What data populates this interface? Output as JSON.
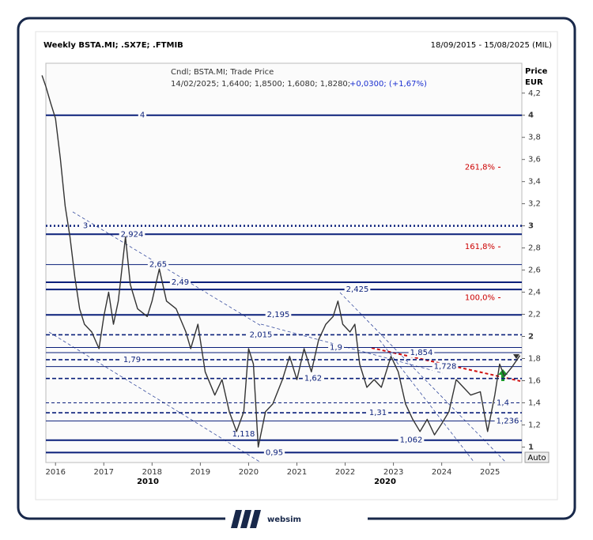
{
  "chart_data": {
    "type": "line",
    "title": "Weekly BSTA.MI; .SX7E; .FTMIB",
    "subtitle": "18/09/2015 - 15/08/2025 (MIL)",
    "info_line_1": "Cndl; BSTA.MI; Trade Price",
    "info_line_2": "14/02/2025; 1,6400; 1,8500; 1,6080; 1,8280;",
    "info_change": "+0,0300; (+1,67%)",
    "y_axis_label": "Price",
    "y_axis_unit": "EUR",
    "auto_button": "Auto",
    "x_secondary_labels": [
      "2010",
      "2020"
    ],
    "xlim": [
      2015.8,
      2025.66
    ],
    "ylim": [
      0.86,
      4.47
    ],
    "xticks": [
      2016,
      2017,
      2018,
      2019,
      2020,
      2021,
      2022,
      2023,
      2024,
      2025
    ],
    "yticks": [
      1,
      {
        "value": 1.2,
        "label": "1,2"
      },
      {
        "value": 1.4,
        "label": "1,4"
      },
      {
        "value": 1.6,
        "label": "1,6"
      },
      {
        "value": 1.8,
        "label": "1,8"
      },
      2,
      {
        "value": 2.2,
        "label": "2,2"
      },
      {
        "value": 2.4,
        "label": "2,4"
      },
      {
        "value": 2.6,
        "label": "2,6"
      },
      {
        "value": 2.8,
        "label": "2,8"
      },
      3,
      {
        "value": 3.2,
        "label": "3,2"
      },
      {
        "value": 3.4,
        "label": "3,4"
      },
      {
        "value": 3.6,
        "label": "3,6"
      },
      {
        "value": 3.8,
        "label": "3,8"
      },
      4,
      {
        "value": 4.2,
        "label": "4,2"
      }
    ],
    "series": [
      {
        "name": "BSTA.MI",
        "color": "#333333",
        "x": [
          2015.72,
          2015.8,
          2015.9,
          2016.0,
          2016.1,
          2016.2,
          2016.3,
          2016.4,
          2016.5,
          2016.6,
          2016.75,
          2016.9,
          2017.0,
          2017.1,
          2017.2,
          2017.3,
          2017.45,
          2017.55,
          2017.7,
          2017.9,
          2018.0,
          2018.15,
          2018.3,
          2018.5,
          2018.7,
          2018.8,
          2018.95,
          2019.1,
          2019.3,
          2019.45,
          2019.6,
          2019.75,
          2019.9,
          2020.0,
          2020.1,
          2020.2,
          2020.35,
          2020.5,
          2020.7,
          2020.85,
          2021.0,
          2021.15,
          2021.3,
          2021.45,
          2021.6,
          2021.75,
          2021.85,
          2021.95,
          2022.1,
          2022.2,
          2022.3,
          2022.45,
          2022.6,
          2022.75,
          2022.95,
          2023.1,
          2023.25,
          2023.4,
          2023.55,
          2023.7,
          2023.85,
          2024.0,
          2024.15,
          2024.3,
          2024.45,
          2024.6,
          2024.8,
          2024.95,
          2025.1,
          2025.2,
          2025.3,
          2025.45,
          2025.62
        ],
        "values": [
          4.36,
          4.26,
          4.11,
          3.97,
          3.61,
          3.18,
          2.9,
          2.54,
          2.25,
          2.11,
          2.04,
          1.89,
          2.18,
          2.4,
          2.11,
          2.32,
          2.9,
          2.47,
          2.25,
          2.18,
          2.32,
          2.61,
          2.32,
          2.25,
          2.04,
          1.89,
          2.11,
          1.68,
          1.47,
          1.61,
          1.32,
          1.14,
          1.32,
          1.89,
          1.75,
          1.0,
          1.32,
          1.39,
          1.61,
          1.82,
          1.61,
          1.89,
          1.68,
          1.97,
          2.11,
          2.18,
          2.32,
          2.11,
          2.04,
          2.11,
          1.75,
          1.54,
          1.61,
          1.54,
          1.82,
          1.68,
          1.39,
          1.25,
          1.14,
          1.25,
          1.11,
          1.21,
          1.32,
          1.61,
          1.54,
          1.47,
          1.5,
          1.14,
          1.47,
          1.75,
          1.64,
          1.72,
          1.828
        ]
      }
    ],
    "levels": [
      {
        "value": 4,
        "label": "4",
        "style": "solid"
      },
      {
        "value": 3,
        "label": "3",
        "style": "dotted"
      },
      {
        "value": 2.924,
        "label": "2,924",
        "style": "solid"
      },
      {
        "value": 2.65,
        "label": "2,65",
        "style": "thin"
      },
      {
        "value": 2.49,
        "label": "2,49",
        "style": "solid"
      },
      {
        "value": 2.425,
        "label": "2,425",
        "style": "solid"
      },
      {
        "value": 2.195,
        "label": "2,195",
        "style": "solid"
      },
      {
        "value": 2.015,
        "label": "2,015",
        "style": "dashed"
      },
      {
        "value": 1.9,
        "label": "1,9",
        "style": "thin"
      },
      {
        "value": 1.854,
        "label": "1,854",
        "style": "thin"
      },
      {
        "value": 1.79,
        "label": "1,79",
        "style": "dashed"
      },
      {
        "value": 1.728,
        "label": "1,728",
        "style": "thin"
      },
      {
        "value": 1.62,
        "label": "1,62",
        "style": "dashed"
      },
      {
        "value": 1.4,
        "label": "1,4",
        "style": "thin-dashed"
      },
      {
        "value": 1.31,
        "label": "1,31",
        "style": "dashed"
      },
      {
        "value": 1.236,
        "label": "1,236",
        "style": "thin"
      },
      {
        "value": 1.062,
        "label": "1,062",
        "style": "solid"
      },
      {
        "value": 0.95,
        "label": "0,95",
        "style": "solid"
      }
    ],
    "annotations": [
      {
        "value": 1.118,
        "label": "1,118"
      }
    ],
    "fib_labels": [
      {
        "value": 261.8,
        "label": "261,8%",
        "level": 3.53
      },
      {
        "value": 161.8,
        "label": "161,8%",
        "level": 2.81
      },
      {
        "value": 100.0,
        "label": "100,0%",
        "level": 2.35
      }
    ],
    "level_color": "#0a1f7a",
    "fib_color": "#cc0000",
    "logo": "websim"
  }
}
